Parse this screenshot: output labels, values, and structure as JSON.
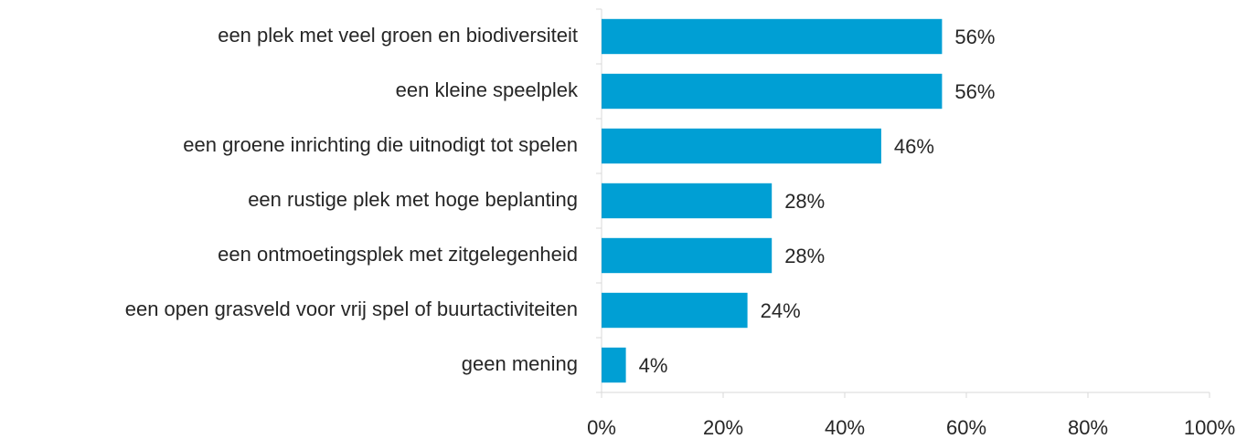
{
  "chart_data": {
    "type": "bar",
    "orientation": "horizontal",
    "categories": [
      "een plek met veel groen en biodiversiteit",
      "een kleine speelplek",
      "een groene inrichting die uitnodigt tot spelen",
      "een rustige plek met hoge beplanting",
      "een ontmoetingsplek met zitgelegenheid",
      "een open grasveld voor vrij spel of buurtactiviteiten",
      "geen mening"
    ],
    "values": [
      56,
      56,
      46,
      28,
      28,
      24,
      4
    ],
    "value_labels": [
      "56%",
      "56%",
      "46%",
      "28%",
      "28%",
      "24%",
      "4%"
    ],
    "color": "#009fd4",
    "xlim": [
      0,
      100
    ],
    "xticks": [
      {
        "value": 0,
        "label": "0%"
      },
      {
        "value": 20,
        "label": "20%"
      },
      {
        "value": 40,
        "label": "40%"
      },
      {
        "value": 60,
        "label": "60%"
      },
      {
        "value": 80,
        "label": "80%"
      },
      {
        "value": 100,
        "label": "100%"
      }
    ],
    "grid": false
  }
}
